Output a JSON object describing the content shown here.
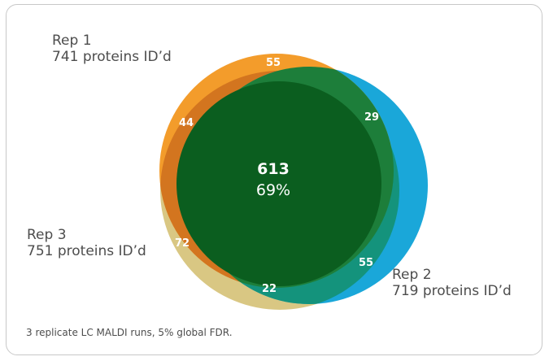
{
  "reps": [
    {
      "name": "Rep 1",
      "count": "741 proteins ID’d"
    },
    {
      "name": "Rep 2",
      "count": "719 proteins ID’d"
    },
    {
      "name": "Rep 3",
      "count": "751 proteins ID’d"
    }
  ],
  "regions": {
    "rep1_only": "55",
    "rep1_rep2": "29",
    "rep1_rep3": "44",
    "rep3_only": "72",
    "rep2_only": "55",
    "rep2_rep3": "22",
    "all_three": "613",
    "all_three_pct": "69%"
  },
  "colors": {
    "rep1": "#f39c2b",
    "rep2": "#1aa7d9",
    "rep3": "#d9c783",
    "rep1_rep3": "#d3751f",
    "rep1_rep2": "#1d7e3a",
    "rep2_rep3": "#14937c",
    "all": "#0b5e1f"
  },
  "footnote": "3 replicate LC MALDI runs, 5% global FDR."
}
